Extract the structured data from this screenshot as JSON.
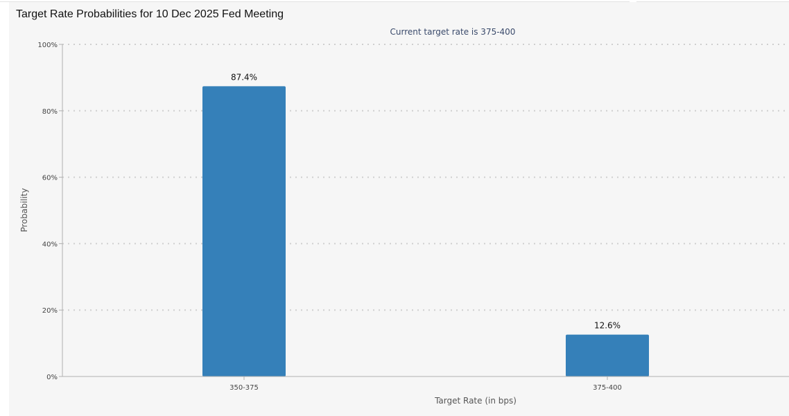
{
  "page": {
    "title": "Target Rate Probabilities for 10 Dec 2025 Fed Meeting"
  },
  "chart_data": {
    "type": "bar",
    "title": "",
    "subtitle": "Current target rate is 375-400",
    "xlabel": "Target Rate (in bps)",
    "ylabel": "Probability",
    "categories": [
      "350-375",
      "375-400"
    ],
    "values": [
      87.4,
      12.6
    ],
    "data_labels": [
      "87.4%",
      "12.6%"
    ],
    "ylim": [
      0,
      100
    ],
    "yticks": [
      0,
      20,
      40,
      60,
      80,
      100
    ],
    "ytick_labels": [
      "0%",
      "20%",
      "40%",
      "60%",
      "80%",
      "100%"
    ],
    "grid": true,
    "legend": "none",
    "colors": {
      "bar": "#3580b9",
      "grid": "#cfcfcf",
      "axis": "#b0b0b0",
      "background": "#f6f6f6"
    }
  }
}
